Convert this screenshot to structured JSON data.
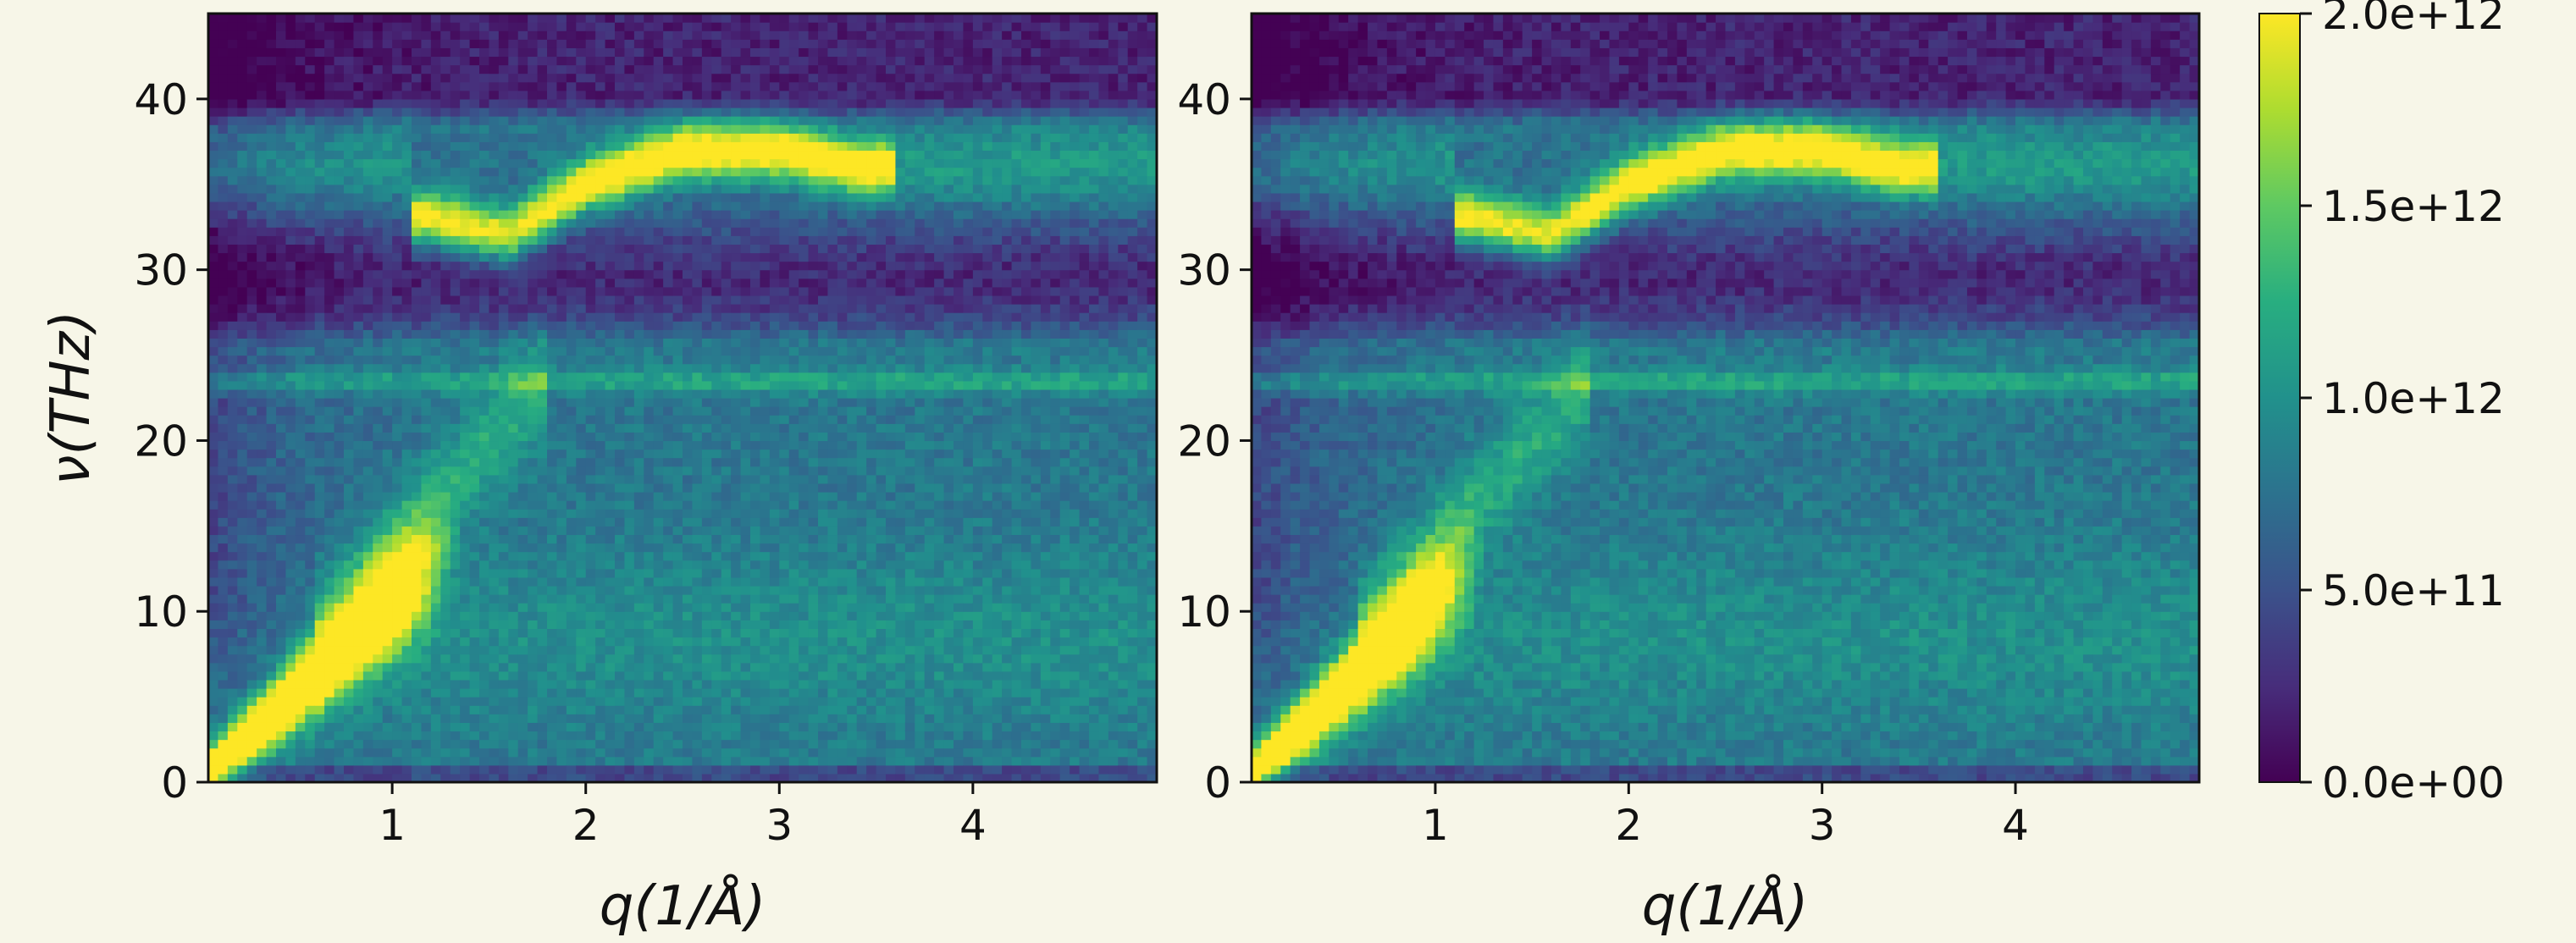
{
  "chart_data": [
    {
      "type": "heatmap",
      "xlabel": "q(1/Å)",
      "ylabel": "ν(THz)",
      "xlim": [
        0.05,
        4.95
      ],
      "ylim": [
        0,
        45
      ],
      "x_ticks": [
        1,
        2,
        3,
        4
      ],
      "y_ticks": [
        0,
        10,
        20,
        30,
        40
      ],
      "colormap": "viridis",
      "color_range": [
        0,
        2000000000000.0
      ],
      "features": [
        {
          "name": "acoustic",
          "q_range": [
            0.05,
            1.0
          ],
          "nu_at_q_min": 0.5,
          "nu_at_q_max": 10.5,
          "intensity": 2000000000000.0
        },
        {
          "name": "optical-high",
          "q": [
            1.2,
            1.6,
            2.0,
            2.5,
            3.0,
            3.4
          ],
          "nu": [
            33,
            32,
            35,
            37,
            37,
            36
          ],
          "intensity": 1900000000000.0
        },
        {
          "name": "flat-band",
          "nu": 23.5,
          "intensity": 1200000000000.0
        }
      ]
    },
    {
      "type": "heatmap",
      "xlabel": "q(1/Å)",
      "ylabel": "",
      "xlim": [
        0.05,
        4.95
      ],
      "ylim": [
        0,
        45
      ],
      "x_ticks": [
        1,
        2,
        3,
        4
      ],
      "y_ticks": [
        0,
        10,
        20,
        30,
        40
      ],
      "colormap": "viridis",
      "color_range": [
        0,
        2000000000000.0
      ],
      "features": [
        {
          "name": "acoustic",
          "q_range": [
            0.05,
            0.9
          ],
          "nu_at_q_min": 0.5,
          "nu_at_q_max": 9.5,
          "intensity": 2000000000000.0
        },
        {
          "name": "optical-high",
          "q": [
            1.2,
            1.6,
            2.0,
            2.5,
            3.0,
            3.4
          ],
          "nu": [
            33,
            32,
            35,
            37,
            37,
            36
          ],
          "intensity": 1850000000000.0
        },
        {
          "name": "flat-band",
          "nu": 23.5,
          "intensity": 1200000000000.0
        }
      ]
    }
  ],
  "colorbar": {
    "ticks": [
      "0.0e+00",
      "5.0e+11",
      "1.0e+12",
      "1.5e+12",
      "2.0e+12"
    ],
    "tick_values": [
      0,
      500000000000.0,
      1000000000000.0,
      1500000000000.0,
      2000000000000.0
    ]
  }
}
